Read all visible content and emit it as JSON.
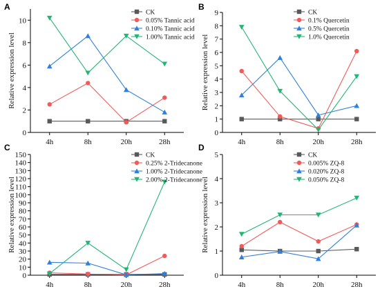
{
  "chart_data": [
    {
      "type": "line",
      "panel_label": "A",
      "categories": [
        "4h",
        "8h",
        "20h",
        "28h"
      ],
      "ylabel": "Relative expression level",
      "ylim": [
        0,
        11
      ],
      "yticks": [
        0,
        2,
        4,
        6,
        8,
        10
      ],
      "legend_position": "top-right",
      "series": [
        {
          "name": "CK",
          "color": "#595959",
          "marker": "square",
          "values": [
            1.0,
            1.0,
            1.0,
            1.0
          ]
        },
        {
          "name": "0.05% Tannic acid",
          "color": "#f25a5a",
          "marker": "circle",
          "values": [
            2.5,
            4.4,
            0.9,
            3.1
          ]
        },
        {
          "name": "0.10% Tannic acid",
          "color": "#2f7fdc",
          "marker": "triangle-up",
          "values": [
            5.9,
            8.6,
            3.8,
            1.8
          ]
        },
        {
          "name": "1.00% Tannic acid",
          "color": "#22b573",
          "marker": "triangle-down",
          "values": [
            10.2,
            5.3,
            8.6,
            6.1
          ]
        }
      ]
    },
    {
      "type": "line",
      "panel_label": "B",
      "categories": [
        "4h",
        "8h",
        "20h",
        "28h"
      ],
      "ylabel": "Relative expression level",
      "ylim": [
        0,
        9
      ],
      "yticks": [
        0,
        1,
        2,
        3,
        4,
        5,
        6,
        7,
        8,
        9
      ],
      "legend_position": "top-right",
      "series": [
        {
          "name": "CK",
          "color": "#595959",
          "marker": "square",
          "values": [
            1.0,
            1.0,
            1.0,
            1.0
          ]
        },
        {
          "name": "0.1% Quercetin",
          "color": "#f25a5a",
          "marker": "circle",
          "values": [
            4.6,
            1.2,
            0.3,
            6.1
          ]
        },
        {
          "name": "0.5% Quercetin",
          "color": "#2f7fdc",
          "marker": "triangle-up",
          "values": [
            2.8,
            5.6,
            1.3,
            2.0
          ]
        },
        {
          "name": "1.0% Quercetin",
          "color": "#22b573",
          "marker": "triangle-down",
          "values": [
            7.9,
            3.1,
            0.2,
            4.2
          ]
        }
      ]
    },
    {
      "type": "line",
      "panel_label": "C",
      "categories": [
        "4h",
        "8h",
        "20h",
        "28h"
      ],
      "ylabel": "Relative expression level",
      "ylim": [
        0,
        150
      ],
      "yticks": [
        0,
        10,
        20,
        30,
        40,
        50,
        60,
        70,
        80,
        90,
        100,
        110,
        120,
        130,
        140,
        150
      ],
      "legend_position": "top-left",
      "series": [
        {
          "name": "CK",
          "color": "#595959",
          "marker": "square",
          "values": [
            1.0,
            1.0,
            1.0,
            1.0
          ]
        },
        {
          "name": "0.25% 2-Tridecanone",
          "color": "#f25a5a",
          "marker": "circle",
          "values": [
            3.0,
            1.5,
            0.5,
            24.0
          ]
        },
        {
          "name": "1.00% 2-Tridecanone",
          "color": "#2f7fdc",
          "marker": "triangle-up",
          "values": [
            16.0,
            15.0,
            0.5,
            2.0
          ]
        },
        {
          "name": "2.00% 2-Tridecanone",
          "color": "#22b573",
          "marker": "triangle-down",
          "values": [
            2.0,
            40.0,
            7.0,
            116.0
          ]
        }
      ]
    },
    {
      "type": "line",
      "panel_label": "D",
      "categories": [
        "4h",
        "8h",
        "20h",
        "28h"
      ],
      "ylabel": "Relative expression level",
      "ylim": [
        0,
        5
      ],
      "yticks": [
        0,
        1,
        2,
        3,
        4,
        5
      ],
      "legend_position": "top-right",
      "series": [
        {
          "name": "CK",
          "color": "#595959",
          "marker": "square",
          "values": [
            1.05,
            1.0,
            1.0,
            1.08
          ]
        },
        {
          "name": "0.005% ZQ-8",
          "color": "#f25a5a",
          "marker": "circle",
          "values": [
            1.2,
            2.2,
            1.4,
            2.1
          ]
        },
        {
          "name": "0.020% ZQ-8",
          "color": "#2f7fdc",
          "marker": "triangle-up",
          "values": [
            0.75,
            0.98,
            0.68,
            2.07
          ]
        },
        {
          "name": "0.050% ZQ-8",
          "color": "#22b573",
          "marker": "triangle-down",
          "values": [
            1.7,
            2.5,
            2.5,
            3.2
          ]
        }
      ]
    }
  ]
}
